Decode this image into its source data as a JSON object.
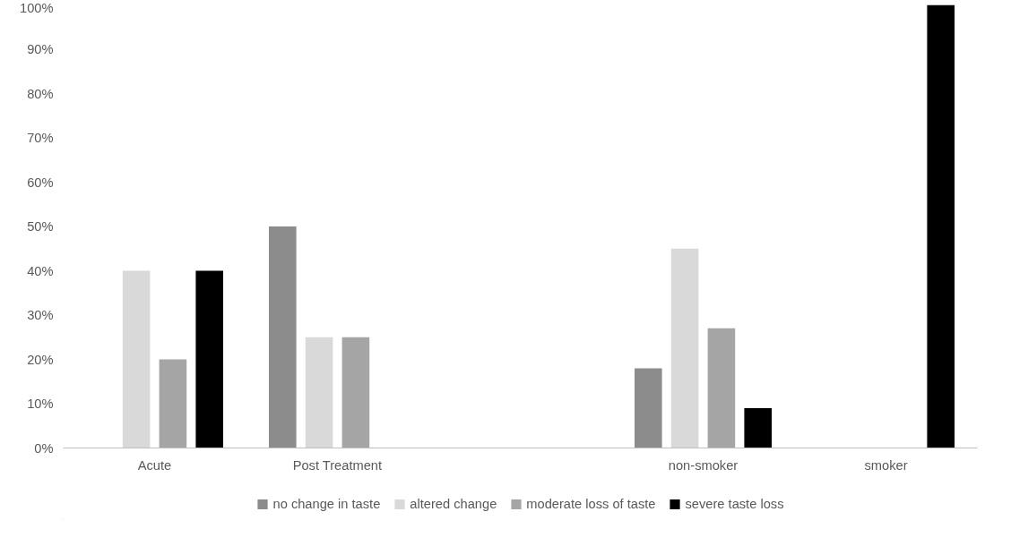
{
  "chart_data": {
    "type": "bar",
    "categories": [
      "Acute",
      "Post Treatment",
      null,
      "non-smoker",
      "smoker"
    ],
    "series": [
      {
        "name": "no change in taste",
        "color": "#8c8c8c",
        "values": [
          0,
          50,
          null,
          18,
          0
        ]
      },
      {
        "name": "altered change",
        "color": "#d9d9d9",
        "values": [
          40,
          25,
          null,
          45,
          0
        ]
      },
      {
        "name": "moderate loss of taste",
        "color": "#a5a5a5",
        "values": [
          20,
          25,
          null,
          27,
          0
        ]
      },
      {
        "name": "severe taste loss",
        "color": "#000000",
        "values": [
          40,
          0,
          null,
          9,
          100
        ]
      }
    ],
    "ylim": [
      0,
      100
    ],
    "yticks": [
      {
        "value": 0,
        "label": "0%"
      },
      {
        "value": 10,
        "label": "10%"
      },
      {
        "value": 20,
        "label": "20%"
      },
      {
        "value": 30,
        "label": "30%"
      },
      {
        "value": 40,
        "label": "40%"
      },
      {
        "value": 50,
        "label": "50%"
      },
      {
        "value": 60,
        "label": "60%"
      },
      {
        "value": 70,
        "label": "70%"
      },
      {
        "value": 80,
        "label": "80%"
      },
      {
        "value": 90,
        "label": "90%"
      },
      {
        "value": 100,
        "label": "100%"
      }
    ],
    "grid": false,
    "legend": "bottom"
  }
}
